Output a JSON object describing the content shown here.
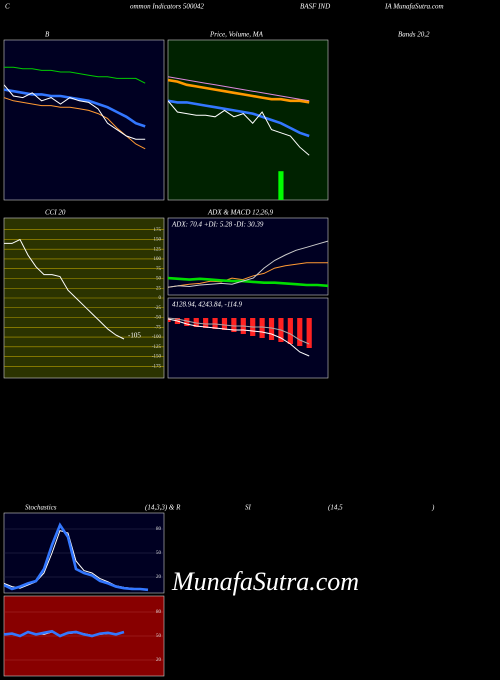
{
  "header": [
    "C",
    "ommon Indicators 500042",
    "BASF IND",
    "IA MunafaSutra.com"
  ],
  "captions": [
    "B",
    "Price, Volume, MA",
    "Bands 20,2",
    "CCI 20",
    "ADX  & MACD 12,26,9",
    "Stochastics",
    "(14,3,3) & R",
    "SI",
    "(14,5",
    ")"
  ],
  "watermark": "MunafaSutra.com",
  "chart_data": [
    {
      "type": "line",
      "background": "#000022",
      "xlim": [
        0,
        17
      ],
      "ylim": [
        0,
        100
      ],
      "series": [
        {
          "color": "#00cc00",
          "values": [
            83,
            83,
            82,
            82,
            81,
            81,
            80,
            80,
            79,
            78,
            77,
            77,
            76,
            76,
            76,
            73
          ]
        },
        {
          "color": "#ff9933",
          "values": [
            64,
            62,
            61,
            60,
            59,
            59,
            58,
            58,
            57,
            56,
            54,
            51,
            45,
            40,
            35,
            32
          ]
        },
        {
          "color": "#3377ff",
          "thick": true,
          "values": [
            69,
            68,
            67,
            66,
            66,
            65,
            65,
            64,
            63,
            62,
            60,
            58,
            55,
            52,
            48,
            46
          ]
        },
        {
          "color": "#ffffff",
          "values": [
            72,
            65,
            64,
            67,
            62,
            64,
            60,
            64,
            62,
            61,
            57,
            48,
            44,
            40,
            38,
            38
          ]
        }
      ]
    },
    {
      "type": "line",
      "background": "#002200",
      "xlim": [
        0,
        17
      ],
      "ylim": [
        0,
        100
      ],
      "series": [
        {
          "color": "#00ff00",
          "bar": true,
          "x": [
            12
          ],
          "values": [
            18
          ]
        },
        {
          "color": "#dd88dd",
          "values": [
            77,
            76,
            75,
            74,
            73,
            72,
            71,
            70,
            69,
            68,
            67,
            66,
            65,
            64,
            63,
            62
          ]
        },
        {
          "color": "#ff9900",
          "thick": true,
          "values": [
            75,
            74,
            72,
            71,
            70,
            69,
            68,
            67,
            66,
            65,
            64,
            63,
            63,
            62,
            62,
            61
          ]
        },
        {
          "color": "#3377ff",
          "thick": true,
          "values": [
            62,
            61,
            61,
            60,
            59,
            58,
            57,
            56,
            55,
            54,
            52,
            50,
            48,
            45,
            42,
            40
          ]
        },
        {
          "color": "#ffffff",
          "values": [
            62,
            55,
            54,
            53,
            53,
            52,
            56,
            52,
            54,
            48,
            55,
            44,
            42,
            40,
            33,
            28
          ]
        }
      ]
    },
    {
      "type": "line",
      "background": "#2b3300",
      "grid": true,
      "grid_color": "#b8a000",
      "xlim": [
        0,
        20
      ],
      "ylim": [
        -205,
        205
      ],
      "yticks": [
        175,
        150,
        125,
        100,
        75,
        50,
        25,
        0,
        -25,
        -50,
        -75,
        -100,
        -125,
        -150,
        -175
      ],
      "series": [
        {
          "color": "#ffffff",
          "label_last": true,
          "values": [
            140,
            140,
            150,
            110,
            80,
            60,
            60,
            55,
            20,
            0,
            -20,
            -40,
            -60,
            -80,
            -95,
            -105
          ]
        }
      ]
    },
    {
      "type": "line",
      "background": "#000022",
      "title": "ADX: 70.4   +DI: 5.28  -DI: 30.39",
      "xlim": [
        0,
        15
      ],
      "ylim": [
        0,
        100
      ],
      "series": [
        {
          "color": "#ff9933",
          "values": [
            10,
            12,
            14,
            15,
            18,
            17,
            22,
            20,
            25,
            28,
            35,
            38,
            40,
            42,
            42,
            42
          ]
        },
        {
          "color": "#00dd00",
          "thick": true,
          "values": [
            22,
            21,
            20,
            21,
            20,
            19,
            18,
            18,
            17,
            16,
            16,
            15,
            14,
            13,
            13,
            12
          ]
        },
        {
          "color": "#cccccc",
          "values": [
            10,
            12,
            11,
            13,
            14,
            15,
            14,
            18,
            22,
            35,
            45,
            52,
            58,
            62,
            66,
            70
          ]
        }
      ]
    },
    {
      "type": "line",
      "background": "#000022",
      "title": "4128.94,  4243.84,  -114.9",
      "xlim": [
        0,
        17
      ],
      "ylim": [
        -300,
        100
      ],
      "series": [
        {
          "color": "#ff2222",
          "bar": true,
          "x": [
            0,
            1,
            2,
            3,
            4,
            5,
            6,
            7,
            8,
            9,
            10,
            11,
            12,
            13,
            14,
            15
          ],
          "values": [
            -20,
            -30,
            -40,
            -45,
            -50,
            -55,
            -60,
            -70,
            -80,
            -90,
            -100,
            -110,
            -120,
            -130,
            -140,
            -150
          ]
        },
        {
          "color": "#aaaaaa",
          "values": [
            0,
            -5,
            -15,
            -25,
            -30,
            -30,
            -35,
            -40,
            -40,
            -45,
            -45,
            -50,
            -60,
            -80,
            -110,
            -130
          ]
        },
        {
          "color": "#ffffff",
          "values": [
            -5,
            -15,
            -30,
            -40,
            -45,
            -50,
            -55,
            -60,
            -60,
            -65,
            -70,
            -80,
            -100,
            -130,
            -170,
            -190
          ]
        }
      ]
    },
    {
      "type": "line",
      "background": "#000022",
      "grid": true,
      "grid_color": "#333355",
      "xlim": [
        0,
        20
      ],
      "ylim": [
        0,
        100
      ],
      "yticks": [
        80,
        50,
        20
      ],
      "series": [
        {
          "color": "#ffffff",
          "values": [
            12,
            8,
            6,
            10,
            14,
            25,
            50,
            78,
            75,
            40,
            28,
            25,
            18,
            14,
            9,
            7,
            6,
            5,
            5
          ]
        },
        {
          "color": "#3377ff",
          "thick": true,
          "values": [
            10,
            5,
            8,
            12,
            15,
            30,
            60,
            85,
            70,
            30,
            25,
            22,
            15,
            12,
            8,
            6,
            5,
            5,
            4
          ]
        }
      ]
    },
    {
      "type": "line",
      "background": "#880000",
      "grid": true,
      "grid_color": "#aa3333",
      "xlim": [
        0,
        20
      ],
      "ylim": [
        0,
        100
      ],
      "yticks": [
        80,
        50,
        20
      ],
      "series": [
        {
          "color": "#ffffff",
          "values": [
            53,
            52,
            51,
            54,
            53,
            52,
            55,
            51,
            53,
            54,
            53,
            51,
            52,
            53,
            53,
            54
          ]
        },
        {
          "color": "#3377ff",
          "thick": true,
          "values": [
            52,
            53,
            50,
            55,
            52,
            54,
            56,
            50,
            54,
            55,
            52,
            50,
            53,
            54,
            52,
            55
          ]
        }
      ]
    }
  ]
}
